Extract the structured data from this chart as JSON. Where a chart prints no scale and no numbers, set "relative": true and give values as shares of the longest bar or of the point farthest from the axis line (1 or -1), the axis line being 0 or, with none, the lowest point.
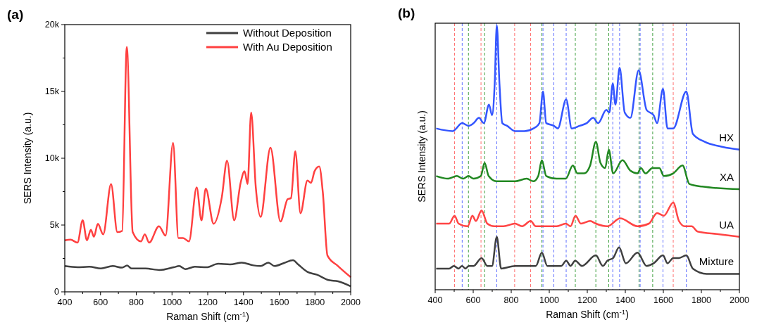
{
  "chart_data": [
    {
      "type": "line",
      "title": "(a)",
      "xlabel": "Raman Shift (cm$^{-1}$)",
      "ylabel": "SERS Intensity (a.u.)",
      "xlim": [
        400,
        2000
      ],
      "ylim": [
        0,
        20000
      ],
      "xticks": [
        400,
        {
          "value": 500,
          "label": null
        },
        600,
        {
          "value": 700,
          "label": null
        },
        800,
        {
          "value": 900,
          "label": null
        },
        1000,
        {
          "value": 1100,
          "label": null
        },
        1200,
        {
          "value": 1300,
          "label": null
        },
        1400,
        {
          "value": 1500,
          "label": null
        },
        1600,
        {
          "value": 1700,
          "label": null
        },
        1800,
        {
          "value": 1900,
          "label": null
        },
        2000
      ],
      "yticks": [
        0,
        {
          "value": 2500,
          "label": null
        },
        {
          "value": 5000,
          "label": "5k"
        },
        {
          "value": 7500,
          "label": null
        },
        {
          "value": 10000,
          "label": "10k"
        },
        {
          "value": 12500,
          "label": null
        },
        {
          "value": 15000,
          "label": "15k"
        },
        {
          "value": 17500,
          "label": null
        },
        {
          "value": 20000,
          "label": "20k"
        }
      ],
      "legend": "top right",
      "grid": false,
      "series": [
        {
          "name": "Without Deposition",
          "color": "#404040",
          "x": [
            400,
            471,
            537,
            602,
            668,
            721,
            749,
            773,
            852,
            931,
            1010,
            1040,
            1075,
            1128,
            1193,
            1259,
            1325,
            1391,
            1456,
            1496,
            1539,
            1574,
            1627,
            1677,
            1706,
            1758,
            1811,
            1876,
            1929,
            2000
          ],
          "values": [
            1930,
            1840,
            1880,
            1750,
            1930,
            1810,
            1980,
            1750,
            1750,
            1630,
            1840,
            1930,
            1700,
            1880,
            1840,
            2100,
            2050,
            2190,
            1980,
            1930,
            2190,
            1930,
            2160,
            2370,
            2050,
            1490,
            1280,
            880,
            790,
            420
          ]
        },
        {
          "name": "With Au Deposition",
          "color": "#ff4040",
          "x": [
            400,
            432,
            471,
            500,
            524,
            546,
            563,
            585,
            615,
            659,
            694,
            721,
            747,
            780,
            826,
            848,
            872,
            927,
            964,
            1006,
            1036,
            1062,
            1095,
            1138,
            1165,
            1189,
            1233,
            1279,
            1308,
            1348,
            1384,
            1406,
            1423,
            1443,
            1469,
            1496,
            1551,
            1607,
            1647,
            1666,
            1690,
            1719,
            1758,
            1778,
            1798,
            1824,
            1844,
            1870,
            1929,
            2000
          ],
          "values": [
            3860,
            3910,
            3680,
            5350,
            3860,
            4650,
            4120,
            5090,
            4300,
            8070,
            4470,
            4560,
            18330,
            4470,
            3770,
            4300,
            3680,
            4910,
            4210,
            11140,
            4030,
            4030,
            3770,
            7810,
            5350,
            7720,
            5090,
            7100,
            9820,
            5350,
            8160,
            9030,
            8070,
            13420,
            7810,
            5610,
            10790,
            5260,
            6930,
            7020,
            10520,
            5880,
            8330,
            8160,
            9030,
            9380,
            7450,
            2720,
            1930,
            1100
          ]
        }
      ]
    },
    {
      "type": "line",
      "title": "(b)",
      "xlabel": "Raman Shift (cm$^{-1}$)",
      "ylabel": "SERS Intensity (a.u.)",
      "relative": true,
      "xlim": [
        400,
        2000
      ],
      "tick_labels": "x",
      "grid": false,
      "xticks": [
        400,
        {
          "value": 500,
          "label": null
        },
        600,
        {
          "value": 700,
          "label": null
        },
        800,
        {
          "value": 900,
          "label": null
        },
        1000,
        {
          "value": 1100,
          "label": null
        },
        1200,
        {
          "value": 1300,
          "label": null
        },
        1400,
        {
          "value": 1500,
          "label": null
        },
        1600,
        {
          "value": 1700,
          "label": null
        },
        1800,
        {
          "value": 1900,
          "label": null
        },
        2000
      ],
      "ref_lines": [
        {
          "axis": "x",
          "value": 502,
          "color": "#ff7070",
          "line_style": "dashed"
        },
        {
          "axis": "x",
          "value": 542,
          "color": "#6070ff",
          "line_style": "dashed"
        },
        {
          "axis": "x",
          "value": 575,
          "color": "#40a040",
          "line_style": "dashed"
        },
        {
          "axis": "x",
          "value": 641,
          "color": "#ff7070",
          "line_style": "dashed"
        },
        {
          "axis": "x",
          "value": 660,
          "color": "#40a040",
          "line_style": "dashed"
        },
        {
          "axis": "x",
          "value": 724,
          "color": "#6070ff",
          "line_style": "dashed"
        },
        {
          "axis": "x",
          "value": 818,
          "color": "#ff7070",
          "line_style": "dashed"
        },
        {
          "axis": "x",
          "value": 902,
          "color": "#ff7070",
          "line_style": "dashed"
        },
        {
          "axis": "x",
          "value": 961,
          "color": "#40a040",
          "line_style": "dashed"
        },
        {
          "axis": "x",
          "value": 967,
          "color": "#6070ff",
          "line_style": "dashed"
        },
        {
          "axis": "x",
          "value": 1024,
          "color": "#6070ff",
          "line_style": "dashed"
        },
        {
          "axis": "x",
          "value": 1089,
          "color": "#6070ff",
          "line_style": "dashed"
        },
        {
          "axis": "x",
          "value": 1137,
          "color": "#40a040",
          "line_style": "dashed"
        },
        {
          "axis": "x",
          "value": 1245,
          "color": "#40a040",
          "line_style": "dashed"
        },
        {
          "axis": "x",
          "value": 1313,
          "color": "#40a040",
          "line_style": "dashed"
        },
        {
          "axis": "x",
          "value": 1334,
          "color": "#6070ff",
          "line_style": "dashed"
        },
        {
          "axis": "x",
          "value": 1370,
          "color": "#6070ff",
          "line_style": "dashed"
        },
        {
          "axis": "x",
          "value": 1472,
          "color": "#40a040",
          "line_style": "dashed"
        },
        {
          "axis": "x",
          "value": 1478,
          "color": "#6070ff",
          "line_style": "dashed"
        },
        {
          "axis": "x",
          "value": 1544,
          "color": "#40a040",
          "line_style": "dashed"
        },
        {
          "axis": "x",
          "value": 1598,
          "color": "#6070ff",
          "line_style": "dashed"
        },
        {
          "axis": "x",
          "value": 1652,
          "color": "#ff7070",
          "line_style": "dashed"
        },
        {
          "axis": "x",
          "value": 1721,
          "color": "#6070ff",
          "line_style": "dashed"
        }
      ],
      "series": [
        {
          "name": "HX",
          "color": "#3355ff",
          "x": [
            405,
            492,
            542,
            575,
            602,
            630,
            656,
            683,
            699,
            713,
            724,
            738,
            753,
            778,
            820,
            869,
            917,
            948,
            967,
            984,
            1024,
            1045,
            1089,
            1118,
            1160,
            1197,
            1231,
            1257,
            1300,
            1316,
            1334,
            1348,
            1370,
            1397,
            1427,
            1470,
            1512,
            1549,
            1567,
            1598,
            1622,
            1652,
            1721,
            1755,
            1816,
            1913,
            2000
          ],
          "values": [
            0.61,
            0.6,
            0.63,
            0.62,
            0.63,
            0.65,
            0.63,
            0.7,
            0.66,
            0.78,
            1.0,
            0.78,
            0.63,
            0.62,
            0.6,
            0.6,
            0.61,
            0.63,
            0.75,
            0.63,
            0.62,
            0.61,
            0.72,
            0.61,
            0.62,
            0.63,
            0.65,
            0.63,
            0.68,
            0.67,
            0.78,
            0.7,
            0.84,
            0.67,
            0.65,
            0.83,
            0.68,
            0.66,
            0.63,
            0.76,
            0.61,
            0.61,
            0.75,
            0.59,
            0.56,
            0.54,
            0.53
          ]
        },
        {
          "name": "XA",
          "color": "#228822",
          "x": [
            405,
            468,
            514,
            547,
            575,
            602,
            640,
            660,
            681,
            723,
            820,
            881,
            917,
            942,
            961,
            984,
            1039,
            1087,
            1124,
            1148,
            1184,
            1215,
            1245,
            1269,
            1294,
            1313,
            1336,
            1385,
            1427,
            1464,
            1482,
            1506,
            1543,
            1579,
            1603,
            1652,
            1701,
            1737,
            1804,
            2000
          ],
          "values": [
            0.43,
            0.42,
            0.43,
            0.42,
            0.43,
            0.42,
            0.43,
            0.48,
            0.43,
            0.41,
            0.41,
            0.42,
            0.41,
            0.43,
            0.49,
            0.43,
            0.42,
            0.42,
            0.47,
            0.44,
            0.44,
            0.47,
            0.56,
            0.48,
            0.46,
            0.53,
            0.44,
            0.49,
            0.45,
            0.44,
            0.46,
            0.44,
            0.46,
            0.46,
            0.43,
            0.44,
            0.47,
            0.4,
            0.39,
            0.38
          ]
        },
        {
          "name": "UA",
          "color": "#ff4444",
          "x": [
            405,
            474,
            502,
            523,
            571,
            596,
            614,
            644,
            674,
            711,
            759,
            820,
            857,
            902,
            929,
            1039,
            1087,
            1112,
            1138,
            1166,
            1215,
            1245,
            1306,
            1373,
            1464,
            1524,
            1567,
            1603,
            1652,
            1682,
            1713,
            1749,
            1780,
            1889,
            2000
          ],
          "values": [
            0.25,
            0.25,
            0.28,
            0.25,
            0.24,
            0.28,
            0.26,
            0.3,
            0.25,
            0.24,
            0.24,
            0.25,
            0.24,
            0.26,
            0.24,
            0.24,
            0.25,
            0.24,
            0.28,
            0.25,
            0.26,
            0.25,
            0.24,
            0.27,
            0.24,
            0.25,
            0.29,
            0.28,
            0.33,
            0.26,
            0.24,
            0.24,
            0.22,
            0.21,
            0.2
          ]
        },
        {
          "name": "Mixture",
          "color": "#404040",
          "x": [
            405,
            474,
            498,
            523,
            541,
            559,
            577,
            602,
            644,
            674,
            699,
            724,
            747,
            820,
            893,
            929,
            961,
            990,
            1063,
            1089,
            1112,
            1136,
            1172,
            1245,
            1282,
            1306,
            1336,
            1367,
            1403,
            1464,
            1512,
            1549,
            1598,
            1622,
            1652,
            1682,
            1721,
            1755,
            1828,
            2000
          ],
          "values": [
            0.08,
            0.08,
            0.09,
            0.08,
            0.09,
            0.08,
            0.09,
            0.09,
            0.12,
            0.09,
            0.09,
            0.2,
            0.08,
            0.09,
            0.09,
            0.09,
            0.14,
            0.09,
            0.09,
            0.11,
            0.09,
            0.11,
            0.09,
            0.13,
            0.09,
            0.11,
            0.12,
            0.16,
            0.1,
            0.14,
            0.09,
            0.1,
            0.13,
            0.1,
            0.12,
            0.12,
            0.13,
            0.08,
            0.06,
            0.06
          ]
        }
      ]
    }
  ]
}
